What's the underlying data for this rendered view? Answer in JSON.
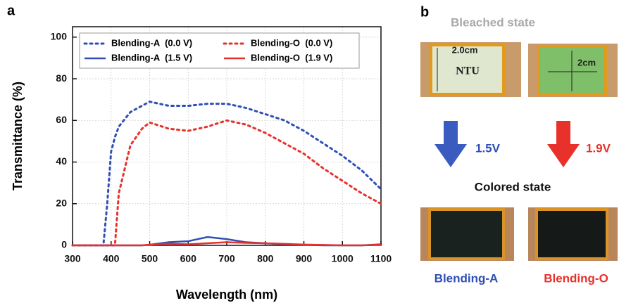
{
  "panel_labels": [
    "a",
    "b"
  ],
  "chart_data": {
    "type": "line",
    "x_label": "Wavelength (nm)",
    "y_label": "Transmittance (%)",
    "x": [
      300,
      350,
      380,
      390,
      400,
      410,
      420,
      450,
      480,
      500,
      550,
      600,
      650,
      700,
      750,
      800,
      850,
      900,
      950,
      1000,
      1050,
      1100
    ],
    "series": [
      {
        "name": "Blending-A  (0.0 V)",
        "color": "#2f4fb5",
        "style": "dotted",
        "values": [
          0,
          0,
          0,
          20,
          45,
          52,
          57,
          64,
          67,
          69,
          67,
          67,
          68,
          68,
          66,
          63,
          60,
          55,
          49,
          43,
          36,
          27
        ]
      },
      {
        "name": "Blending-O  (0.0 V)",
        "color": "#e8312a",
        "style": "dotted",
        "values": [
          0,
          0,
          0,
          0,
          0,
          0,
          25,
          48,
          56,
          59,
          56,
          55,
          57,
          60,
          58,
          54,
          49,
          44,
          37,
          31,
          25,
          20
        ]
      },
      {
        "name": "Blending-A  (1.5 V)",
        "color": "#2f4fb5",
        "style": "solid",
        "values": [
          0,
          0,
          0,
          0,
          0,
          0,
          0,
          0,
          0,
          0.3,
          1.5,
          2,
          4,
          3,
          1.5,
          1,
          0.5,
          0.3,
          0,
          0,
          0,
          0.5
        ]
      },
      {
        "name": "Blending-O  (1.9 V)",
        "color": "#e8312a",
        "style": "solid",
        "values": [
          0,
          0,
          0,
          0,
          0,
          0,
          0,
          0,
          0,
          0.3,
          0.8,
          0.5,
          1,
          1.5,
          1.2,
          1,
          0.7,
          0.4,
          0.2,
          0,
          0,
          0.3
        ]
      }
    ],
    "xlim": [
      300,
      1100
    ],
    "xticks": [
      300,
      400,
      500,
      600,
      700,
      800,
      900,
      1000,
      1100
    ],
    "ylim": [
      0,
      105
    ],
    "yticks": [
      0,
      20,
      40,
      60,
      80,
      100
    ],
    "grid": true,
    "legend": "top"
  },
  "panel_b": {
    "bleached_title": "Bleached state",
    "width_label": "2.0cm",
    "logo": "NTU",
    "height_label": "2cm",
    "voltage_a": "1.5V",
    "voltage_o": "1.9V",
    "colored_title": "Colored state",
    "sample_a": "Blending-A",
    "sample_o": "Blending-O"
  }
}
